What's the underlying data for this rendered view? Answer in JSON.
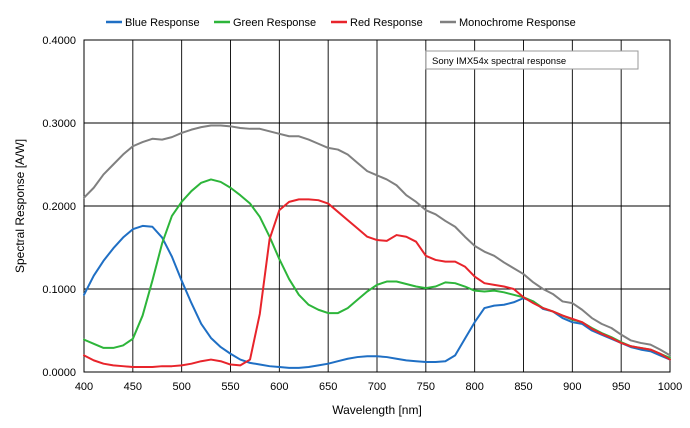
{
  "chart_data": {
    "type": "line",
    "title": "",
    "xlabel": "Wavelength [nm]",
    "ylabel": "Spectral Response [A/W]",
    "xlim": [
      400,
      1000
    ],
    "ylim": [
      0,
      0.4
    ],
    "x_ticks": [
      400,
      450,
      500,
      550,
      600,
      650,
      700,
      750,
      800,
      850,
      900,
      950,
      1000
    ],
    "x_tick_labels": [
      "400",
      "450",
      "500",
      "550",
      "600",
      "650",
      "700",
      "750",
      "800",
      "850",
      "900",
      "950",
      "1000"
    ],
    "y_ticks": [
      0,
      0.1,
      0.2,
      0.3,
      0.4
    ],
    "y_tick_labels": [
      "0.0000",
      "0.1000",
      "0.2000",
      "0.3000",
      "0.4000"
    ],
    "grid": true,
    "legend_position": "top",
    "annotation": "Sony IMX54x spectral response",
    "x": [
      400,
      410,
      420,
      430,
      440,
      450,
      460,
      470,
      480,
      490,
      500,
      510,
      520,
      530,
      540,
      550,
      560,
      570,
      580,
      590,
      600,
      610,
      620,
      630,
      640,
      650,
      660,
      670,
      680,
      690,
      700,
      710,
      720,
      730,
      740,
      750,
      760,
      770,
      780,
      790,
      800,
      810,
      820,
      830,
      840,
      850,
      860,
      870,
      880,
      890,
      900,
      910,
      920,
      930,
      940,
      950,
      960,
      970,
      980,
      990,
      1000
    ],
    "series": [
      {
        "name": "Blue Response",
        "color": "#1f6fc4",
        "values": [
          0.093,
          0.116,
          0.134,
          0.149,
          0.162,
          0.172,
          0.176,
          0.175,
          0.162,
          0.139,
          0.11,
          0.083,
          0.058,
          0.041,
          0.03,
          0.022,
          0.015,
          0.011,
          0.009,
          0.007,
          0.006,
          0.005,
          0.005,
          0.006,
          0.008,
          0.01,
          0.013,
          0.016,
          0.018,
          0.019,
          0.019,
          0.018,
          0.016,
          0.014,
          0.013,
          0.012,
          0.012,
          0.013,
          0.02,
          0.04,
          0.06,
          0.077,
          0.08,
          0.081,
          0.084,
          0.089,
          0.085,
          0.076,
          0.073,
          0.065,
          0.06,
          0.058,
          0.05,
          0.045,
          0.04,
          0.035,
          0.03,
          0.027,
          0.025,
          0.02,
          0.015
        ]
      },
      {
        "name": "Green Response",
        "color": "#2db53a",
        "values": [
          0.039,
          0.034,
          0.029,
          0.029,
          0.032,
          0.04,
          0.068,
          0.11,
          0.155,
          0.188,
          0.205,
          0.218,
          0.228,
          0.232,
          0.229,
          0.222,
          0.213,
          0.203,
          0.187,
          0.163,
          0.136,
          0.112,
          0.093,
          0.081,
          0.075,
          0.071,
          0.071,
          0.077,
          0.087,
          0.097,
          0.105,
          0.109,
          0.109,
          0.106,
          0.103,
          0.101,
          0.103,
          0.108,
          0.107,
          0.103,
          0.098,
          0.097,
          0.098,
          0.096,
          0.093,
          0.09,
          0.085,
          0.077,
          0.073,
          0.068,
          0.063,
          0.06,
          0.053,
          0.047,
          0.042,
          0.036,
          0.031,
          0.029,
          0.027,
          0.022,
          0.017
        ]
      },
      {
        "name": "Red Response",
        "color": "#e8242b",
        "values": [
          0.02,
          0.014,
          0.01,
          0.008,
          0.007,
          0.006,
          0.006,
          0.006,
          0.007,
          0.007,
          0.008,
          0.01,
          0.013,
          0.015,
          0.013,
          0.009,
          0.008,
          0.015,
          0.07,
          0.16,
          0.195,
          0.205,
          0.208,
          0.208,
          0.207,
          0.203,
          0.193,
          0.183,
          0.173,
          0.163,
          0.159,
          0.158,
          0.165,
          0.163,
          0.157,
          0.14,
          0.135,
          0.133,
          0.133,
          0.127,
          0.115,
          0.107,
          0.105,
          0.103,
          0.1,
          0.09,
          0.083,
          0.077,
          0.073,
          0.068,
          0.064,
          0.06,
          0.052,
          0.046,
          0.041,
          0.035,
          0.031,
          0.029,
          0.027,
          0.022,
          0.015
        ]
      },
      {
        "name": "Monochrome Response",
        "color": "#808080",
        "values": [
          0.21,
          0.222,
          0.238,
          0.25,
          0.262,
          0.272,
          0.277,
          0.281,
          0.28,
          0.283,
          0.288,
          0.292,
          0.295,
          0.297,
          0.297,
          0.296,
          0.294,
          0.293,
          0.293,
          0.29,
          0.287,
          0.284,
          0.284,
          0.28,
          0.275,
          0.27,
          0.268,
          0.262,
          0.252,
          0.242,
          0.237,
          0.232,
          0.225,
          0.213,
          0.205,
          0.195,
          0.19,
          0.182,
          0.175,
          0.163,
          0.152,
          0.145,
          0.14,
          0.132,
          0.125,
          0.118,
          0.108,
          0.1,
          0.094,
          0.085,
          0.083,
          0.075,
          0.065,
          0.058,
          0.053,
          0.045,
          0.038,
          0.035,
          0.033,
          0.027,
          0.02
        ]
      }
    ]
  }
}
